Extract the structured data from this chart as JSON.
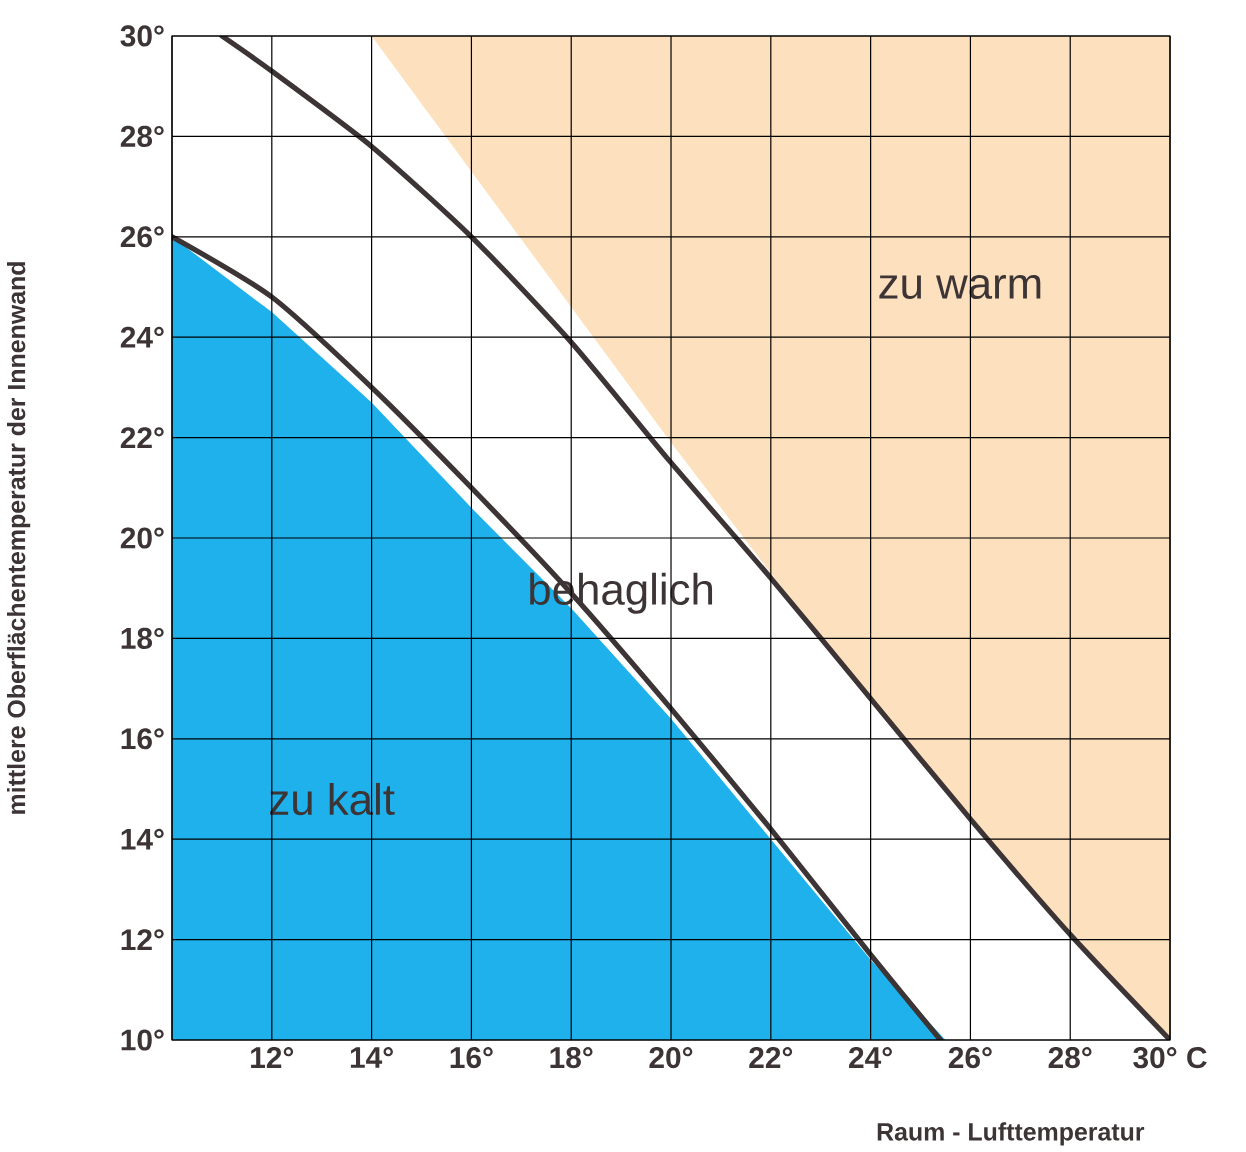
{
  "chart_data": {
    "type": "area",
    "xlabel": "Raum - Lufttemperatur",
    "ylabel": "mittlere Oberflächentemperatur der Innenwand",
    "xlim": [
      10,
      30
    ],
    "ylim": [
      10,
      30
    ],
    "xticks": [
      {
        "value": 10,
        "label": null
      },
      {
        "value": 12,
        "label": "12°"
      },
      {
        "value": 14,
        "label": "14°"
      },
      {
        "value": 16,
        "label": "16°"
      },
      {
        "value": 18,
        "label": "18°"
      },
      {
        "value": 20,
        "label": "20°"
      },
      {
        "value": 22,
        "label": "22°"
      },
      {
        "value": 24,
        "label": "24°"
      },
      {
        "value": 26,
        "label": "26°"
      },
      {
        "value": 28,
        "label": "28°"
      },
      {
        "value": 30,
        "label": "30° C"
      }
    ],
    "yticks": [
      {
        "value": 10,
        "label": "10°"
      },
      {
        "value": 12,
        "label": "12°"
      },
      {
        "value": 14,
        "label": "14°"
      },
      {
        "value": 16,
        "label": "16°"
      },
      {
        "value": 18,
        "label": "18°"
      },
      {
        "value": 20,
        "label": "20°"
      },
      {
        "value": 22,
        "label": "22°"
      },
      {
        "value": 24,
        "label": "24°"
      },
      {
        "value": 26,
        "label": "26°"
      },
      {
        "value": 28,
        "label": "28°"
      },
      {
        "value": 30,
        "label": "30°"
      }
    ],
    "grid": true,
    "series": [
      {
        "color": "#1fb1eb",
        "x": [
          10,
          12,
          14,
          16,
          18,
          20,
          22,
          24,
          25.5
        ],
        "values": [
          26,
          24.5,
          22.7,
          20.6,
          18.6,
          16.4,
          14,
          11.6,
          10
        ]
      },
      {
        "color": "#fde0bd",
        "x": [
          14,
          16,
          18,
          20,
          22,
          24,
          26,
          28,
          30,
          30
        ],
        "values": [
          30,
          27.3,
          24.6,
          21.9,
          19.3,
          16.8,
          14.4,
          12.1,
          10,
          30
        ]
      },
      {
        "type": "line",
        "color": "#3c3435",
        "x": [
          10,
          12,
          14,
          16,
          18,
          20,
          22,
          24,
          25.4
        ],
        "values": [
          26,
          24.8,
          23,
          21,
          18.9,
          16.6,
          14.2,
          11.7,
          10
        ]
      },
      {
        "type": "line",
        "color": "#3c3435",
        "x": [
          11,
          12,
          14,
          16,
          18,
          20,
          22,
          24,
          26,
          28,
          30
        ],
        "values": [
          30,
          29.3,
          27.8,
          26,
          23.9,
          21.5,
          19.2,
          16.8,
          14.4,
          12.1,
          10
        ]
      }
    ],
    "annotations": [
      "zu warm",
      "behaglich",
      "zu kalt"
    ]
  }
}
